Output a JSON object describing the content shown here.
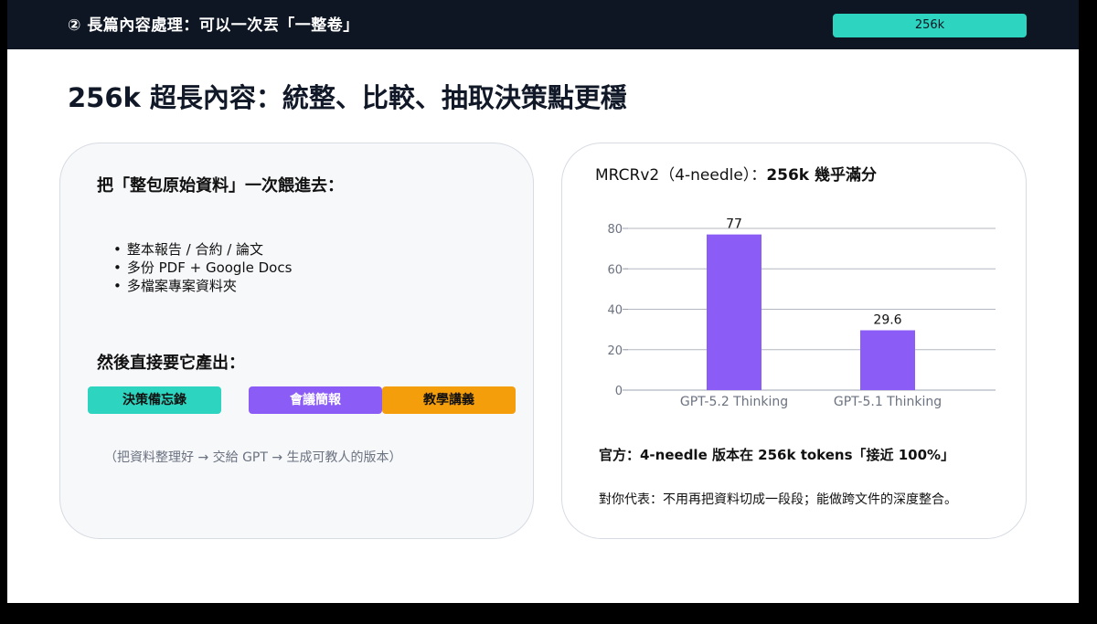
{
  "header": {
    "section_title": "② 長篇內容處理：可以一次丟「一整卷」",
    "badge": "256k"
  },
  "page_title": "256k 超長內容：統整、比較、抽取決策點更穩",
  "left_card": {
    "heading": "把「整包原始資料」一次餵進去：",
    "bullets": [
      "整本報告 / 合約 / 論文",
      "多份 PDF + Google Docs",
      "多檔案專案資料夾"
    ],
    "subheading": "然後直接要它產出：",
    "outputs": [
      "決策備忘錄",
      "會議簡報",
      "教學講義"
    ],
    "flow_note": "（把資料整理好 → 交給 GPT → 生成可教人的版本）"
  },
  "right_card": {
    "chart_title_prefix": "MRCRv2（4-needle）：",
    "chart_title_bold": "256k 幾乎滿分",
    "official": "官方：4-needle 版本在 256k tokens「接近 100%」",
    "meaning": "對你代表：不用再把資料切成一段段；能做跨文件的深度整合。"
  },
  "colors": {
    "topbar": "#0e1523",
    "accent_teal": "#2dd4bf",
    "accent_purple": "#8b5cf6",
    "accent_orange": "#f59e0b"
  },
  "chart_data": {
    "type": "bar",
    "categories": [
      "GPT-5.2 Thinking",
      "GPT-5.1 Thinking"
    ],
    "values": [
      77,
      29.6
    ],
    "data_labels": [
      "77",
      "29.6"
    ],
    "yticks": [
      "0",
      "20",
      "40",
      "60",
      "80"
    ],
    "ylim": [
      0,
      80
    ],
    "grid": true,
    "bar_color": "#8b5cf6"
  }
}
